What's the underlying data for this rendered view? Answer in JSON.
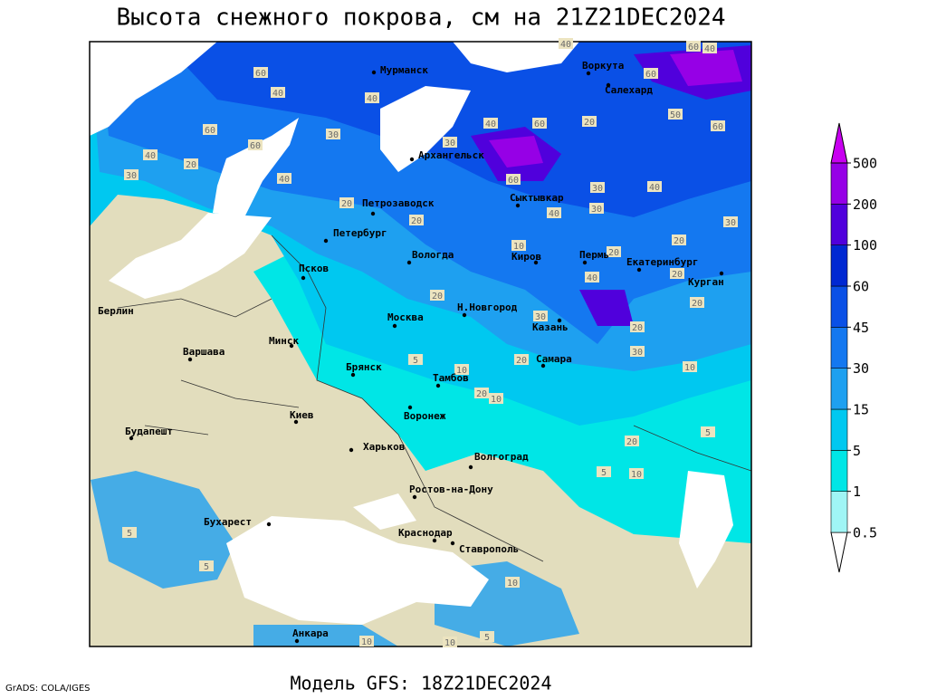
{
  "header": {
    "title": "Высота снежного покрова, см на 21Z21DEC2024"
  },
  "footer": {
    "model": "Модель GFS: 18Z21DEC2024",
    "credit": "GrADS: COLA/IGES"
  },
  "legend": {
    "levels": [
      0.5,
      1,
      5,
      15,
      30,
      45,
      60,
      100,
      200,
      500
    ],
    "colors": [
      "#ffffff",
      "#a0f5f5",
      "#00e6e6",
      "#00c8f0",
      "#1ea0f0",
      "#1478f0",
      "#0a50e6",
      "#0028d2",
      "#5000dc",
      "#9600e6",
      "#c800f0"
    ]
  },
  "cities": [
    "Мурманск",
    "Воркута",
    "Салехард",
    "Архангельск",
    "Сыктывкар",
    "Петрозаводск",
    "Петербург",
    "Вологда",
    "Киров",
    "Пермь",
    "Екатеринбург",
    "Курган",
    "Псков",
    "Н.Новгород",
    "Казань",
    "Москва",
    "Берлин",
    "Варшава",
    "Минск",
    "Брянск",
    "Тамбов",
    "Самара",
    "Киев",
    "Воронеж",
    "Будапешт",
    "Харьков",
    "Волгоград",
    "Ростов-на-Дону",
    "Бухарест",
    "Краснодар",
    "Ставрополь",
    "Анкара"
  ],
  "contour_labels": [
    60,
    40,
    40,
    60,
    30,
    60,
    40,
    20,
    30,
    40,
    20,
    20,
    40,
    60,
    20,
    30,
    60,
    30,
    30,
    40,
    40,
    60,
    50,
    30,
    40,
    60,
    40,
    60,
    10,
    20,
    20,
    20,
    20,
    40,
    20,
    30,
    20,
    30,
    20,
    5,
    10,
    20,
    10,
    10,
    5,
    20,
    10,
    5,
    5,
    5,
    10,
    5,
    10,
    10
  ]
}
